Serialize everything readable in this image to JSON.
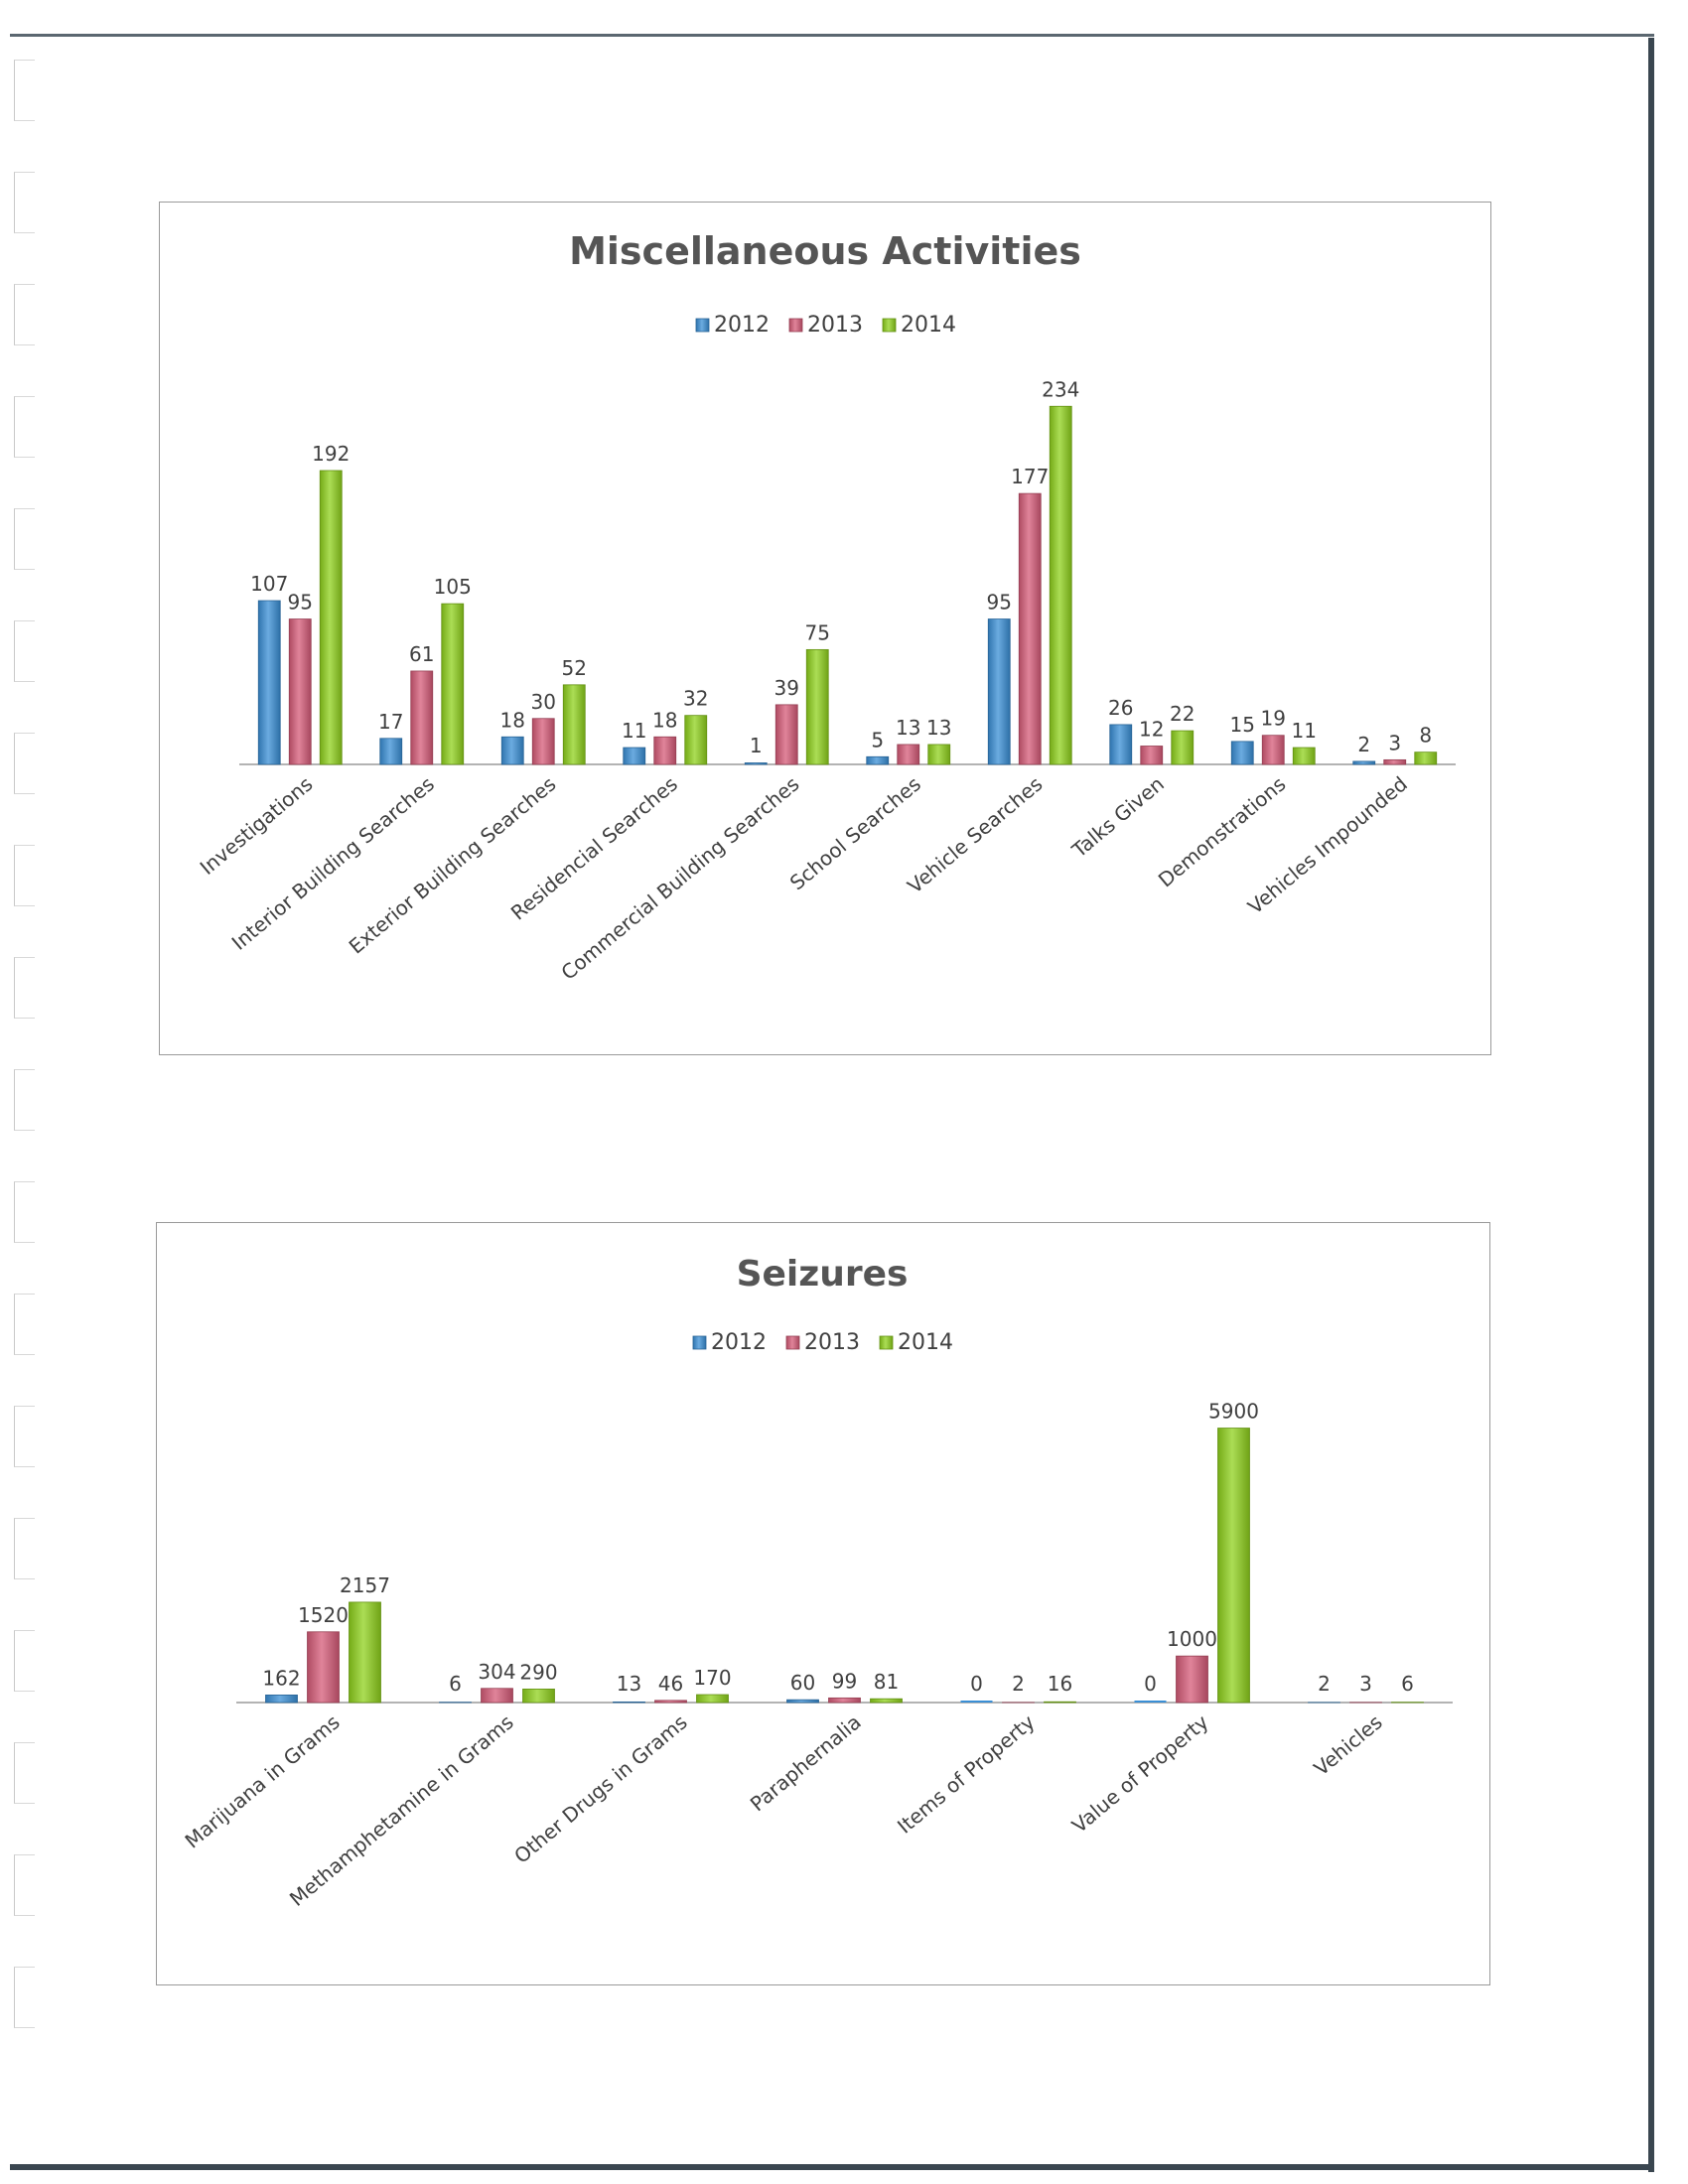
{
  "chart_data": [
    {
      "type": "bar",
      "title": "Miscellaneous Activities",
      "legend_position": "top",
      "grid": false,
      "ylim": [
        0,
        240
      ],
      "categories": [
        "Investigations",
        "Interior Building Searches",
        "Exterior Building Searches",
        "Residencial Searches",
        "Commercial Building Searches",
        "School Searches",
        "Vehicle Searches",
        "Talks Given",
        "Demonstrations",
        "Vehicles Impounded"
      ],
      "series": [
        {
          "name": "2012",
          "color": "#3a8fd6",
          "values": [
            107,
            17,
            18,
            11,
            1,
            5,
            95,
            26,
            15,
            2
          ]
        },
        {
          "name": "2013",
          "color": "#d65b78",
          "values": [
            95,
            61,
            30,
            18,
            39,
            13,
            177,
            12,
            19,
            3
          ]
        },
        {
          "name": "2014",
          "color": "#8fd11c",
          "values": [
            192,
            105,
            52,
            32,
            75,
            13,
            234,
            22,
            11,
            8
          ]
        }
      ]
    },
    {
      "type": "bar",
      "title": "Seizures",
      "legend_position": "top",
      "grid": false,
      "ylim": [
        0,
        7000
      ],
      "categories": [
        "Marijuana in Grams",
        "Methamphetamine in Grams",
        "Other Drugs in Grams",
        "Paraphernalia",
        "Items of Property",
        "Value of Property",
        "Vehicles"
      ],
      "series": [
        {
          "name": "2012",
          "color": "#3a8fd6",
          "values": [
            162,
            6,
            13,
            60,
            0,
            0,
            2
          ]
        },
        {
          "name": "2013",
          "color": "#d65b78",
          "values": [
            1520,
            304,
            46,
            99,
            2,
            1000,
            3
          ]
        },
        {
          "name": "2014",
          "color": "#8fd11c",
          "values": [
            2157,
            290,
            170,
            81,
            16,
            5900,
            6
          ]
        }
      ]
    }
  ]
}
